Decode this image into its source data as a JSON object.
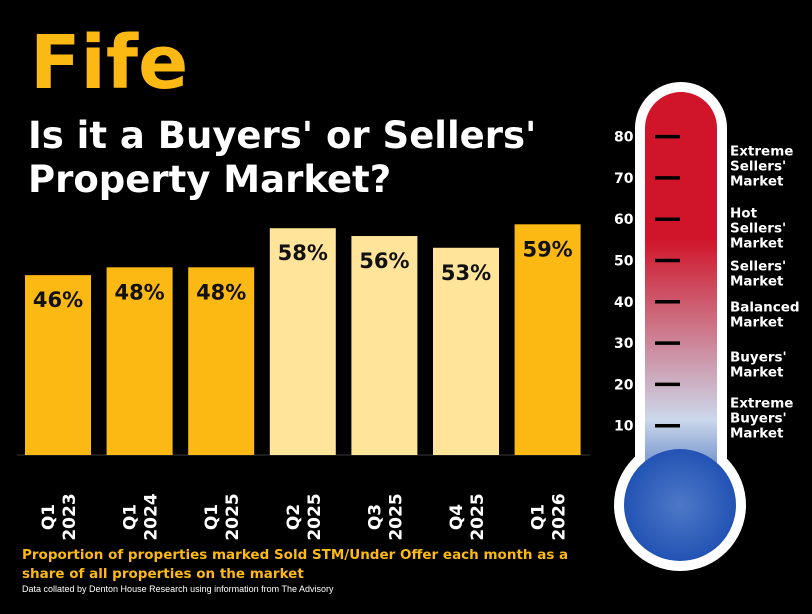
{
  "title": "Fife",
  "subtitle_lines": [
    "Is it a Buyers' or Sellers'",
    "Property Market?"
  ],
  "footnote": "Proportion of properties marked Sold STM/Under Offer each month as a share of all properties on the market",
  "source": "Data collated by Denton House Research using information from The Advisory",
  "colors": {
    "bar_dark": "#FDB913",
    "bar_light": "#FFE49A",
    "title": "#FDB913",
    "background": "#000000"
  },
  "chart_data": {
    "type": "bar",
    "categories": [
      [
        "Q1",
        "2023"
      ],
      [
        "Q1",
        "2024"
      ],
      [
        "Q1",
        "2025"
      ],
      [
        "Q2",
        "2025"
      ],
      [
        "Q3",
        "2025"
      ],
      [
        "Q4",
        "2025"
      ],
      [
        "Q1",
        "2026"
      ]
    ],
    "values": [
      46,
      48,
      48,
      58,
      56,
      53,
      59
    ],
    "data_labels": [
      "46%",
      "48%",
      "48%",
      "58%",
      "56%",
      "53%",
      "59%"
    ],
    "bar_colors": [
      "#FDB913",
      "#FDB913",
      "#FDB913",
      "#FFE49A",
      "#FFE49A",
      "#FFE49A",
      "#FDB913"
    ],
    "unit": "%",
    "grid": false
  },
  "thermometer": {
    "scale": [
      80,
      70,
      60,
      50,
      40,
      30,
      20,
      10
    ],
    "zones": [
      {
        "lines": [
          "Extreme",
          "Sellers'",
          "Market"
        ],
        "level": 73
      },
      {
        "lines": [
          "Hot",
          "Sellers'",
          "Market"
        ],
        "level": 58
      },
      {
        "lines": [
          "Sellers'",
          "Market"
        ],
        "level": 47
      },
      {
        "lines": [
          "Balanced",
          "Market"
        ],
        "level": 37
      },
      {
        "lines": [
          "Buyers'",
          "Market"
        ],
        "level": 25
      },
      {
        "lines": [
          "Extreme",
          "Buyers'",
          "Market"
        ],
        "level": 12
      }
    ],
    "colors": {
      "top": "#D0152A",
      "middle": "#CBD8EA",
      "bottom": "#1E4FB2"
    }
  }
}
